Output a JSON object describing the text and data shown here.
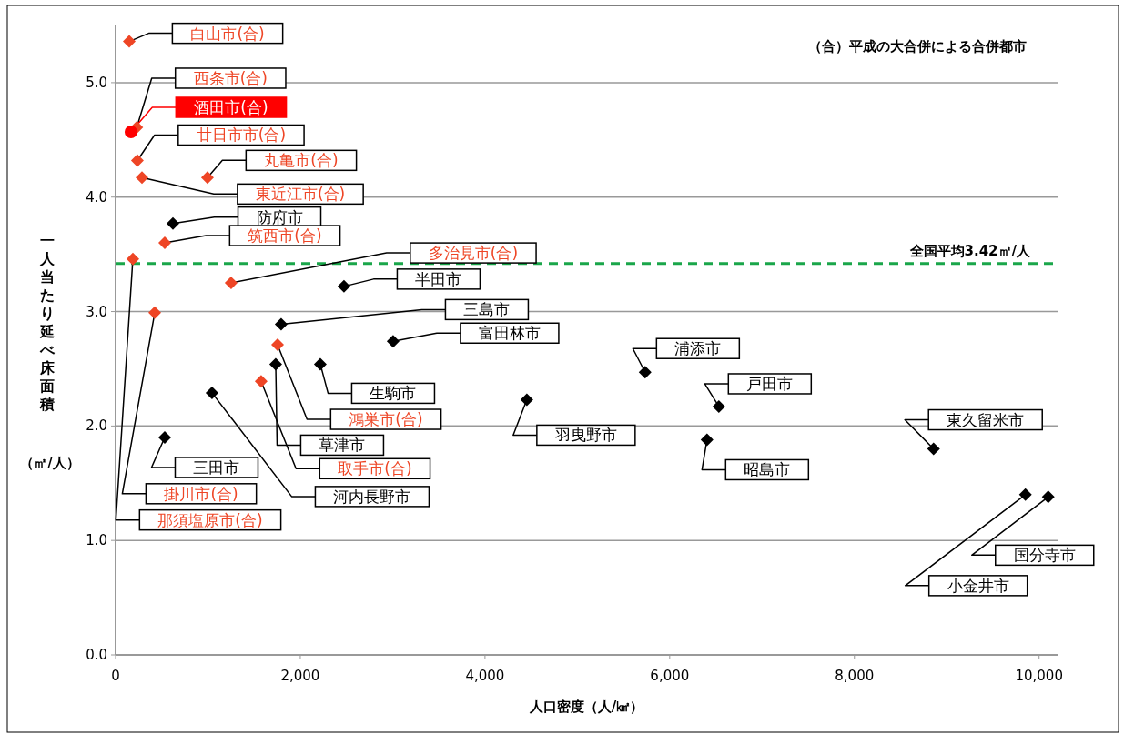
{
  "chart_data": {
    "type": "scatter",
    "xlabel": "人口密度（人/㎢）",
    "ylabel": "一人当たり延べ床面積（㎡/人）",
    "xlim": [
      0,
      10200
    ],
    "ylim": [
      0,
      5.5
    ],
    "xticks": [
      {
        "value": 0,
        "label": "0"
      },
      {
        "value": 2000,
        "label": "2,000"
      },
      {
        "value": 4000,
        "label": "4,000"
      },
      {
        "value": 6000,
        "label": "6,000"
      },
      {
        "value": 8000,
        "label": "8,000"
      },
      {
        "value": 10000,
        "label": "10,000"
      }
    ],
    "yticks": [
      {
        "value": 0,
        "label": "0.0"
      },
      {
        "value": 1,
        "label": "1.0"
      },
      {
        "value": 2,
        "label": "2.0"
      },
      {
        "value": 3,
        "label": "3.0"
      },
      {
        "value": 4,
        "label": "4.0"
      },
      {
        "value": 5,
        "label": "5.0"
      }
    ],
    "grid": "y",
    "legend": false,
    "series": [
      {
        "color": "#ee4525",
        "marker": "diamond",
        "x": [
          148,
          230,
          236,
          995,
          286,
          532,
          187,
          1251,
          424,
          1754,
          1576
        ],
        "values": [
          5.36,
          4.61,
          4.32,
          4.17,
          4.17,
          3.6,
          3.46,
          3.25,
          2.99,
          2.71,
          2.39
        ]
      },
      {
        "color": "#000000",
        "marker": "diamond",
        "x": [
          621,
          2473,
          1793,
          3005,
          5734,
          2217,
          1734,
          1044,
          4453,
          6532,
          532,
          6404,
          8857,
          9852,
          10099
        ],
        "values": [
          3.77,
          3.22,
          2.89,
          2.74,
          2.47,
          2.54,
          2.54,
          2.29,
          2.23,
          2.17,
          1.9,
          1.88,
          1.8,
          1.4,
          1.38
        ]
      },
      {
        "color": "#ff0000",
        "marker": "circle",
        "x": [
          167
        ],
        "values": [
          4.57
        ]
      }
    ],
    "ref_lines": [
      {
        "axis": "y",
        "value": 3.42,
        "label": "全国平均3.42㎡/人",
        "color": "#1aa64a",
        "line_style": "dashed"
      }
    ],
    "annotations": [
      "（合）平成の大合併による合併都市",
      {
        "text": "白山市(合)",
        "x": 148,
        "y": 5.36
      },
      {
        "text": "西条市(合)",
        "x": 230,
        "y": 4.61
      },
      {
        "text": "酒田市(合)",
        "x": 167,
        "y": 4.57
      },
      {
        "text": "廿日市市(合)",
        "x": 236,
        "y": 4.32
      },
      {
        "text": "丸亀市(合)",
        "x": 995,
        "y": 4.17
      },
      {
        "text": "東近江市(合)",
        "x": 286,
        "y": 4.17
      },
      {
        "text": "防府市",
        "x": 621,
        "y": 3.77
      },
      {
        "text": "筑西市(合)",
        "x": 532,
        "y": 3.6
      },
      {
        "text": "那須塩原市(合)",
        "x": 187,
        "y": 3.46
      },
      {
        "text": "多治見市(合)",
        "x": 1251,
        "y": 3.25
      },
      {
        "text": "半田市",
        "x": 2473,
        "y": 3.22
      },
      {
        "text": "掛川市(合)",
        "x": 424,
        "y": 2.99
      },
      {
        "text": "三島市",
        "x": 1793,
        "y": 2.89
      },
      {
        "text": "富田林市",
        "x": 3005,
        "y": 2.74
      },
      {
        "text": "鴻巣市(合)",
        "x": 1754,
        "y": 2.71
      },
      {
        "text": "浦添市",
        "x": 5734,
        "y": 2.47
      },
      {
        "text": "生駒市",
        "x": 2217,
        "y": 2.54
      },
      {
        "text": "草津市",
        "x": 1734,
        "y": 2.54
      },
      {
        "text": "取手市(合)",
        "x": 1576,
        "y": 2.39
      },
      {
        "text": "河内長野市",
        "x": 1044,
        "y": 2.29
      },
      {
        "text": "羽曳野市",
        "x": 4453,
        "y": 2.23
      },
      {
        "text": "戸田市",
        "x": 6532,
        "y": 2.17
      },
      {
        "text": "三田市",
        "x": 532,
        "y": 1.9
      },
      {
        "text": "昭島市",
        "x": 6404,
        "y": 1.88
      },
      {
        "text": "東久留米市",
        "x": 8857,
        "y": 1.8
      },
      {
        "text": "小金井市",
        "x": 9852,
        "y": 1.4
      },
      {
        "text": "国分寺市",
        "x": 10099,
        "y": 1.38
      }
    ]
  }
}
